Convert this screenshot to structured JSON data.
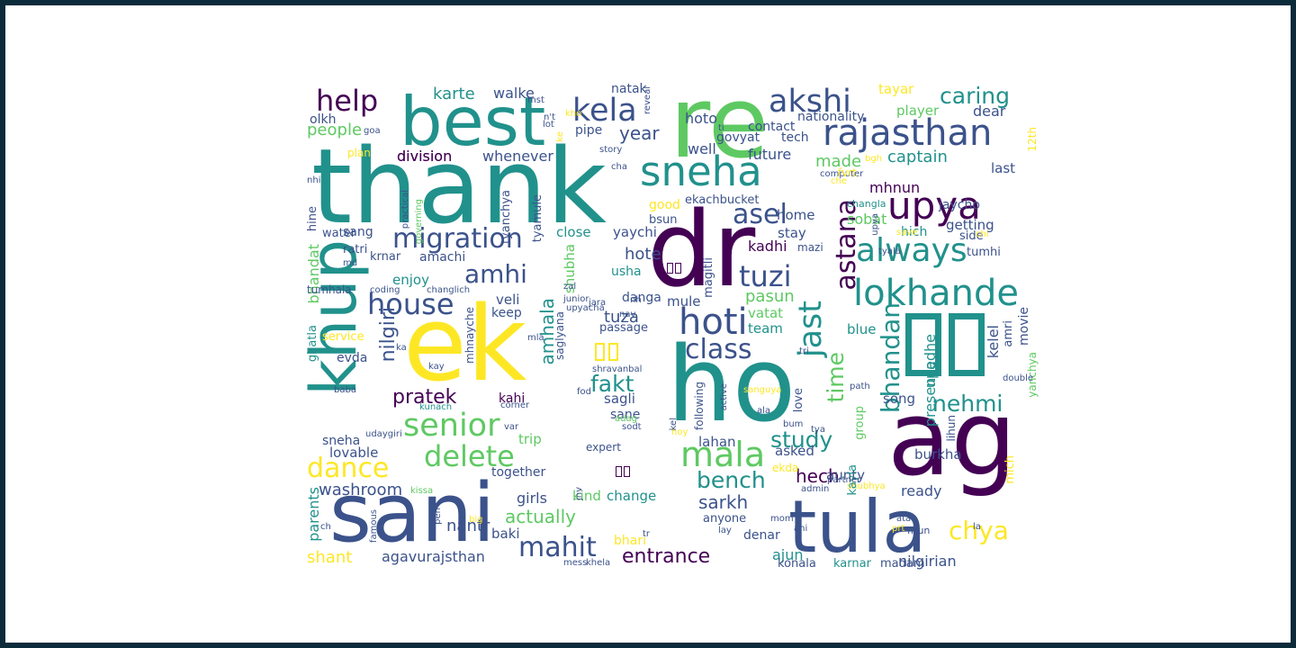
{
  "palette": {
    "dark_purple": "#440154",
    "indigo": "#3b528b",
    "teal": "#21918c",
    "green": "#5ec962",
    "yellow": "#fde725"
  },
  "words": [
    "thank",
    "re",
    "best",
    "dr",
    "ek",
    "ho",
    "ag",
    "sani",
    "tula",
    "khup",
    "sneha",
    "kela",
    "akshi",
    "rajasthan",
    "help",
    "caring",
    "upya",
    "always",
    "lokhande",
    "migration",
    "asel",
    "house",
    "hoti",
    "tuzi",
    "amhi",
    "class",
    "jast",
    "astana",
    "senior",
    "delete",
    "mala",
    "dance",
    "mahit",
    "chya",
    "fakt",
    "nehmi",
    "bhandan",
    "study",
    "time",
    "bench",
    "sarkh",
    "pratek",
    "nilgiri",
    "entrance",
    "hech",
    "people",
    "karte",
    "walke",
    "year",
    "captain",
    "made",
    "mhnun",
    "division",
    "whenever",
    "hoto",
    "well",
    "future",
    "tech",
    "govyat",
    "contact",
    "nationality",
    "tayar",
    "player",
    "dear",
    "olkh",
    "last",
    "ekachbucket",
    "upadhe",
    "kelel",
    "presence",
    "bhandat",
    "ghatla",
    "parents",
    "shant",
    "washroom",
    "nantr",
    "actually",
    "agavurajsthan",
    "ajun",
    "nilgirian",
    "lovable",
    "sneha",
    "together",
    "girls",
    "baki",
    "change",
    "kind",
    "trip",
    "expert",
    "getting",
    "side",
    "jaycho",
    "hich",
    "changla",
    "sobat",
    "good",
    "bsun",
    "home",
    "stay",
    "mazi",
    "pasun",
    "kadhi",
    "vatat",
    "team",
    "blue",
    "mule",
    "magitli",
    "danga",
    "passage",
    "usha",
    "hote",
    "close",
    "yaychi",
    "shubha",
    "tyanchya",
    "tyamule",
    "tuza",
    "keep",
    "amhala",
    "veli",
    "kahi",
    "sagli",
    "sane",
    "shubhya",
    "song",
    "love",
    "asked",
    "aunty",
    "ekda",
    "kayla",
    "ready",
    "burkha",
    "lihun",
    "movie",
    "yanchya",
    "amri",
    "tumhi",
    "enjoy",
    "amachi",
    "sang",
    "ratri",
    "water",
    "hine",
    "krnar",
    "tumhala",
    "service",
    "evda",
    "mhnayche",
    "saglyana",
    "shravanbal",
    "baba",
    "kunach",
    "coding",
    "changlich",
    "zal",
    "junior",
    "upyacha",
    "nav",
    "nh",
    "jara",
    "fod",
    "corner",
    "var",
    "udaygiri",
    "kissa",
    "famous",
    "ch",
    "pen",
    "jnv",
    "big",
    "mess",
    "khela",
    "bhari",
    "tr",
    "lay",
    "anyone",
    "denar",
    "mom",
    "ani",
    "konala",
    "karnar",
    "madam",
    "firun",
    "prt",
    "ata",
    "la",
    "mich",
    "partner",
    "admin",
    "lahan",
    "group",
    "following",
    "active",
    "sanguya",
    "adag",
    "sodt",
    "hoy",
    "tya",
    "kel",
    "tri",
    "bum",
    "ala",
    "path",
    "double",
    "upya",
    "tyala",
    "save",
    "chi",
    "computer",
    "bgh",
    "che",
    "fvrt",
    "12th",
    "practical",
    "governing",
    "story",
    "cha",
    "ke",
    "n't",
    "mst",
    "kho",
    "lot",
    "goa",
    "plan",
    "nhi",
    "md",
    "mla",
    "ka",
    "kay",
    "ti",
    "reveal",
    "pipe",
    "natak",
    "division"
  ]
}
